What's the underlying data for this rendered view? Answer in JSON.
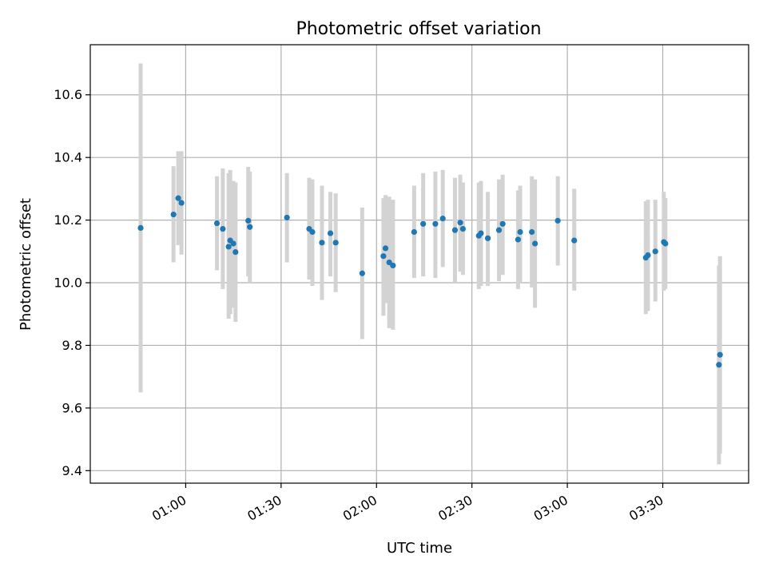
{
  "chart_data": {
    "type": "scatter",
    "title": "Photometric offset variation",
    "xlabel": "UTC time",
    "ylabel": "Photometric offset",
    "x_unit": "HH:MM",
    "xlim": [
      "00:30",
      "03:57"
    ],
    "ylim": [
      9.36,
      10.76
    ],
    "xticks": [
      "01:00",
      "01:30",
      "02:00",
      "02:30",
      "03:00",
      "03:30"
    ],
    "yticks": [
      "9.4",
      "9.6",
      "9.8",
      "10.0",
      "10.2",
      "10.4",
      "10.6"
    ],
    "grid": true,
    "colors": {
      "marker": "#1f77b4",
      "errorbar": "#d3d3d3",
      "grid": "#b0b0b0"
    },
    "series": [
      {
        "points": [
          {
            "x": "00:45:50",
            "y": 10.175,
            "lo": 9.65,
            "hi": 10.7
          },
          {
            "x": "00:56:10",
            "y": 10.218,
            "lo": 10.065,
            "hi": 10.372
          },
          {
            "x": "00:57:40",
            "y": 10.27,
            "lo": 10.12,
            "hi": 10.42
          },
          {
            "x": "00:58:40",
            "y": 10.255,
            "lo": 10.09,
            "hi": 10.42
          },
          {
            "x": "01:09:50",
            "y": 10.19,
            "lo": 10.04,
            "hi": 10.34
          },
          {
            "x": "01:11:40",
            "y": 10.172,
            "lo": 9.98,
            "hi": 10.365
          },
          {
            "x": "01:13:30",
            "y": 10.115,
            "lo": 9.885,
            "hi": 10.35
          },
          {
            "x": "01:14:00",
            "y": 10.135,
            "lo": 9.9,
            "hi": 10.36
          },
          {
            "x": "01:15:00",
            "y": 10.125,
            "lo": 9.92,
            "hi": 10.325
          },
          {
            "x": "01:15:40",
            "y": 10.098,
            "lo": 9.875,
            "hi": 10.32
          },
          {
            "x": "01:19:40",
            "y": 10.198,
            "lo": 10.02,
            "hi": 10.37
          },
          {
            "x": "01:20:10",
            "y": 10.178,
            "lo": 10.0,
            "hi": 10.355
          },
          {
            "x": "01:31:50",
            "y": 10.208,
            "lo": 10.065,
            "hi": 10.35
          },
          {
            "x": "01:38:50",
            "y": 10.172,
            "lo": 10.01,
            "hi": 10.335
          },
          {
            "x": "01:39:50",
            "y": 10.162,
            "lo": 9.99,
            "hi": 10.33
          },
          {
            "x": "01:42:50",
            "y": 10.128,
            "lo": 9.945,
            "hi": 10.31
          },
          {
            "x": "01:45:30",
            "y": 10.158,
            "lo": 10.02,
            "hi": 10.29
          },
          {
            "x": "01:47:10",
            "y": 10.128,
            "lo": 9.97,
            "hi": 10.285
          },
          {
            "x": "01:55:30",
            "y": 10.03,
            "lo": 9.82,
            "hi": 10.24
          },
          {
            "x": "02:02:10",
            "y": 10.085,
            "lo": 9.895,
            "hi": 10.27
          },
          {
            "x": "02:02:50",
            "y": 10.11,
            "lo": 9.935,
            "hi": 10.28
          },
          {
            "x": "02:04:00",
            "y": 10.065,
            "lo": 9.855,
            "hi": 10.275
          },
          {
            "x": "02:05:10",
            "y": 10.055,
            "lo": 9.85,
            "hi": 10.265
          },
          {
            "x": "02:11:50",
            "y": 10.162,
            "lo": 10.015,
            "hi": 10.31
          },
          {
            "x": "02:14:40",
            "y": 10.188,
            "lo": 10.02,
            "hi": 10.35
          },
          {
            "x": "02:18:30",
            "y": 10.188,
            "lo": 10.015,
            "hi": 10.355
          },
          {
            "x": "02:20:50",
            "y": 10.205,
            "lo": 10.05,
            "hi": 10.36
          },
          {
            "x": "02:24:40",
            "y": 10.168,
            "lo": 10.0,
            "hi": 10.335
          },
          {
            "x": "02:26:20",
            "y": 10.192,
            "lo": 10.035,
            "hi": 10.345
          },
          {
            "x": "02:27:10",
            "y": 10.172,
            "lo": 10.025,
            "hi": 10.32
          },
          {
            "x": "02:32:10",
            "y": 10.15,
            "lo": 9.98,
            "hi": 10.32
          },
          {
            "x": "02:32:50",
            "y": 10.158,
            "lo": 9.99,
            "hi": 10.325
          },
          {
            "x": "02:35:00",
            "y": 10.142,
            "lo": 9.99,
            "hi": 10.29
          },
          {
            "x": "02:38:30",
            "y": 10.168,
            "lo": 10.005,
            "hi": 10.33
          },
          {
            "x": "02:39:40",
            "y": 10.188,
            "lo": 10.025,
            "hi": 10.345
          },
          {
            "x": "02:44:30",
            "y": 10.138,
            "lo": 9.98,
            "hi": 10.295
          },
          {
            "x": "02:45:10",
            "y": 10.162,
            "lo": 10.0,
            "hi": 10.31
          },
          {
            "x": "02:48:50",
            "y": 10.162,
            "lo": 9.985,
            "hi": 10.34
          },
          {
            "x": "02:49:50",
            "y": 10.125,
            "lo": 9.92,
            "hi": 10.33
          },
          {
            "x": "02:57:00",
            "y": 10.198,
            "lo": 10.055,
            "hi": 10.34
          },
          {
            "x": "03:02:10",
            "y": 10.135,
            "lo": 9.975,
            "hi": 10.3
          },
          {
            "x": "03:24:40",
            "y": 10.08,
            "lo": 9.9,
            "hi": 10.26
          },
          {
            "x": "03:25:20",
            "y": 10.088,
            "lo": 9.91,
            "hi": 10.265
          },
          {
            "x": "03:27:40",
            "y": 10.1,
            "lo": 9.94,
            "hi": 10.265
          },
          {
            "x": "03:30:20",
            "y": 10.13,
            "lo": 9.975,
            "hi": 10.29
          },
          {
            "x": "03:30:50",
            "y": 10.125,
            "lo": 9.98,
            "hi": 10.27
          },
          {
            "x": "03:47:40",
            "y": 9.738,
            "lo": 9.42,
            "hi": 10.055
          },
          {
            "x": "03:48:00",
            "y": 9.77,
            "lo": 9.455,
            "hi": 10.085
          }
        ]
      }
    ]
  }
}
